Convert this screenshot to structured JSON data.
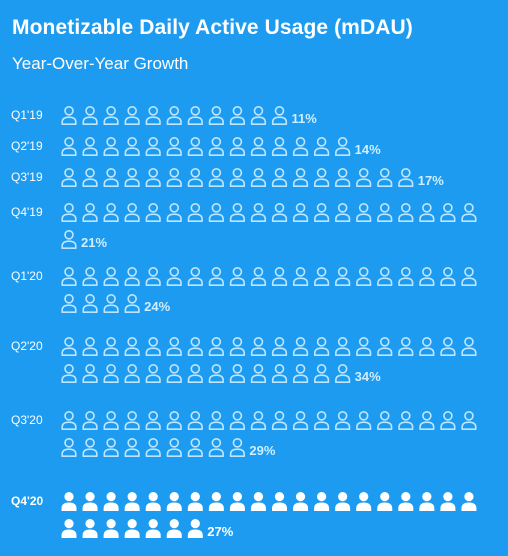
{
  "title": "Monetizable Daily Active Usage (mDAU)",
  "subtitle": "Year-Over-Year Growth",
  "colors": {
    "background": "#1d9bf0",
    "icon_outline": "#bfe6ff",
    "icon_filled": "#ffffff",
    "percent_text": "#cfeeff"
  },
  "icon": "person-icon",
  "chart_data": {
    "type": "pictogram",
    "title": "Monetizable Daily Active Usage (mDAU)",
    "subtitle": "Year-Over-Year Growth",
    "categories": [
      "Q1'19",
      "Q2'19",
      "Q3'19",
      "Q4'19",
      "Q1'20",
      "Q2'20",
      "Q3'20",
      "Q4'20"
    ],
    "values": [
      11,
      14,
      17,
      21,
      24,
      34,
      29,
      27
    ],
    "value_labels": [
      "11%",
      "14%",
      "17%",
      "21%",
      "24%",
      "34%",
      "29%",
      "27%"
    ],
    "unit": "%",
    "icons_per_row": 20,
    "highlighted_category": "Q4'20"
  }
}
